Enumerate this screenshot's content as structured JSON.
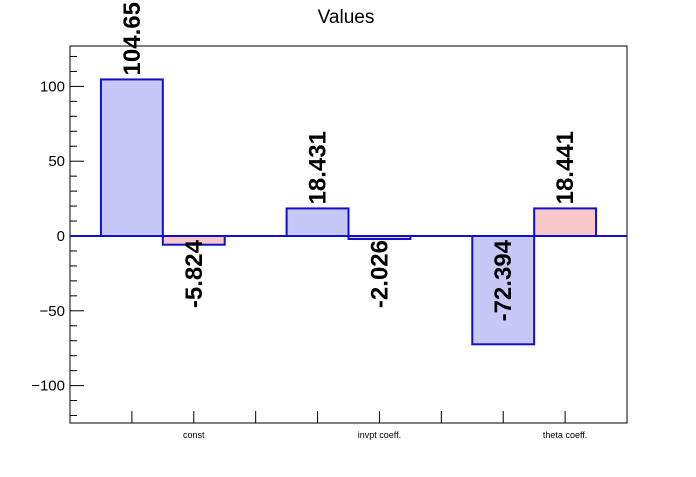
{
  "chart_data": {
    "type": "bar",
    "title": "Values",
    "categories": [
      "const",
      "invpt coeff.",
      "theta coeff."
    ],
    "series": [
      {
        "values": [
          104.65,
          18.431,
          -72.394
        ],
        "color": "#c8c8f8",
        "stroke": "#1010cc"
      },
      {
        "values": [
          -5.824,
          -2.026,
          18.441
        ],
        "color": "#f8c8c8",
        "stroke": "#1010cc"
      }
    ],
    "data_labels": [
      [
        "104.65",
        "18.431",
        "-72.394"
      ],
      [
        "-5.824",
        "-2.026",
        "18.441"
      ]
    ],
    "yticks": [
      -100,
      -50,
      0,
      50,
      100
    ],
    "ytick_labels": [
      "−100",
      "−50",
      "0",
      "50",
      "100"
    ],
    "ylim": [
      -125,
      127
    ],
    "baseline_color": "#1010cc",
    "grid": false,
    "legend": "none"
  }
}
